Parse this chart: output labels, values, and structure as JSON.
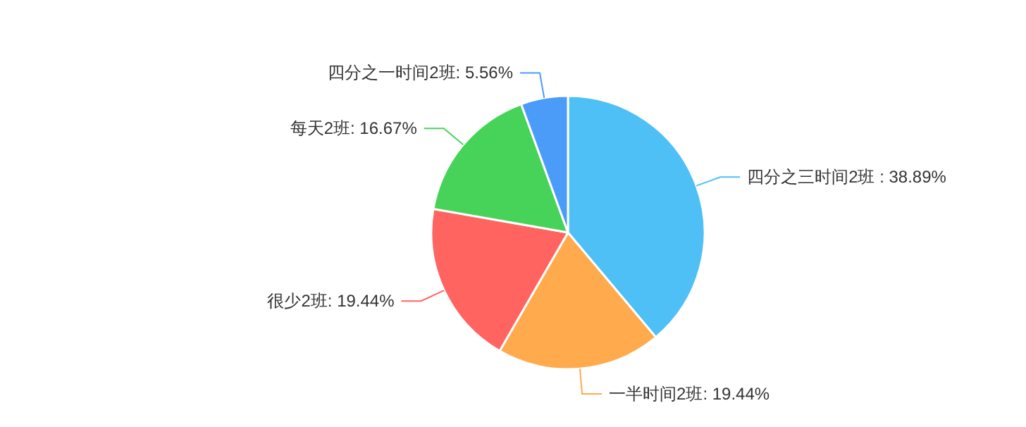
{
  "chart_data": {
    "type": "pie",
    "categories": [
      "四分之三时间2班",
      "一半时间2班",
      "很少2班",
      "每天2班",
      "四分之一时间2班"
    ],
    "values": [
      38.89,
      19.44,
      19.44,
      16.67,
      5.56
    ],
    "colors": [
      "#4fc0f6",
      "#ffaa4d",
      "#ff6461",
      "#47d35a",
      "#4b9bf9"
    ],
    "value_labels": [
      " : 38.89%",
      ": 19.44%",
      ": 19.44%",
      ": 16.67%",
      ": 5.56%"
    ]
  }
}
